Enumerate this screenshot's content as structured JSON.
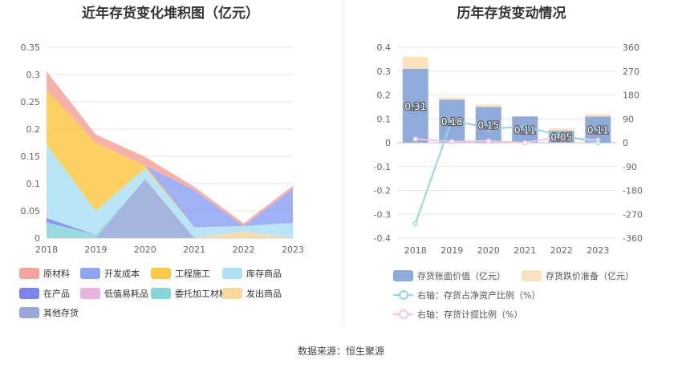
{
  "left_title": "近年存货变化堆积图（亿元）",
  "right_title": "历年存货变动情况",
  "source": "数据来源：恒生聚源",
  "chart_data": [
    {
      "type": "area",
      "title": "近年存货变化堆积图（亿元）",
      "x": [
        "2018",
        "2019",
        "2020",
        "2021",
        "2022",
        "2023"
      ],
      "ylim": [
        0,
        0.35
      ],
      "yticks": [
        "0",
        "0.05",
        "0.1",
        "0.15",
        "0.2",
        "0.25",
        "0.3",
        "0.35"
      ],
      "grid": true,
      "legend_position": "bottom",
      "series": [
        {
          "name": "原材料",
          "color": "#f4a39a",
          "values": [
            0.034,
            0.015,
            0.016,
            0.006,
            0.005,
            0.005
          ]
        },
        {
          "name": "开发成本",
          "color": "#8fa4f3",
          "values": [
            0.0,
            0.0,
            0.0,
            0.068,
            0.0,
            0.063
          ]
        },
        {
          "name": "工程施工",
          "color": "#fbc847",
          "values": [
            0.1,
            0.125,
            0.005,
            0.0,
            0.0,
            0.0
          ]
        },
        {
          "name": "库存商品",
          "color": "#aee0f6",
          "values": [
            0.135,
            0.044,
            0.02,
            0.02,
            0.01,
            0.028
          ]
        },
        {
          "name": "在产品",
          "color": "#7b83ee",
          "values": [
            0.008,
            0.0,
            0.0,
            0.0,
            0.0,
            0.0
          ]
        },
        {
          "name": "低值易耗品",
          "color": "#e7b5da",
          "values": [
            0.0,
            0.0,
            0.0,
            0.0,
            0.0,
            0.0
          ]
        },
        {
          "name": "委托加工材料",
          "color": "#86d6d9",
          "values": [
            0.029,
            0.006,
            0.0,
            0.0,
            0.0,
            0.0
          ]
        },
        {
          "name": "发出商品",
          "color": "#fdd89b",
          "values": [
            0.0,
            0.0,
            0.0,
            0.0,
            0.012,
            0.0
          ]
        },
        {
          "name": "其他存货",
          "color": "#97a8d8",
          "values": [
            0.0,
            0.0,
            0.108,
            0.0,
            0.0,
            0.0
          ]
        }
      ]
    },
    {
      "type": "bar",
      "title": "历年存货变动情况",
      "categories": [
        "2018",
        "2019",
        "2020",
        "2021",
        "2022",
        "2023"
      ],
      "ylim": [
        -0.4,
        0.4
      ],
      "yticks": [
        "0.4",
        "0.3",
        "0.2",
        "0.1",
        "0",
        "-0.1",
        "-0.2",
        "-0.3",
        "-0.4"
      ],
      "y2lim": [
        -360,
        360
      ],
      "y2ticks": [
        "360",
        "270",
        "180",
        "90",
        "0",
        "-90",
        "-180",
        "-270",
        "-360"
      ],
      "grid": true,
      "legend_position": "bottom",
      "series": [
        {
          "name": "存货账面价值（亿元）",
          "color": "#8eabdb",
          "axis": "left",
          "kind": "bar",
          "values": [
            0.31,
            0.18,
            0.15,
            0.11,
            0.05,
            0.11
          ],
          "labels": [
            "0.31",
            "0.18",
            "0.15",
            "0.11",
            "0.05",
            "0.11"
          ]
        },
        {
          "name": "存货跌价准备（亿元）",
          "color": "#fde3bd",
          "axis": "left",
          "kind": "bar",
          "values": [
            0.05,
            0.01,
            0.01,
            0.0,
            0.01,
            0.01
          ]
        },
        {
          "name": "右轴：存货占净资产比例（%）",
          "color": "#93d8e0",
          "axis": "right",
          "kind": "line",
          "values": [
            -305,
            87,
            53,
            60,
            27,
            0
          ]
        },
        {
          "name": "右轴：存货计提比例（%）",
          "color": "#f1c4e6",
          "axis": "right",
          "kind": "line",
          "values": [
            14,
            4,
            6,
            0,
            22,
            10
          ]
        }
      ]
    }
  ]
}
